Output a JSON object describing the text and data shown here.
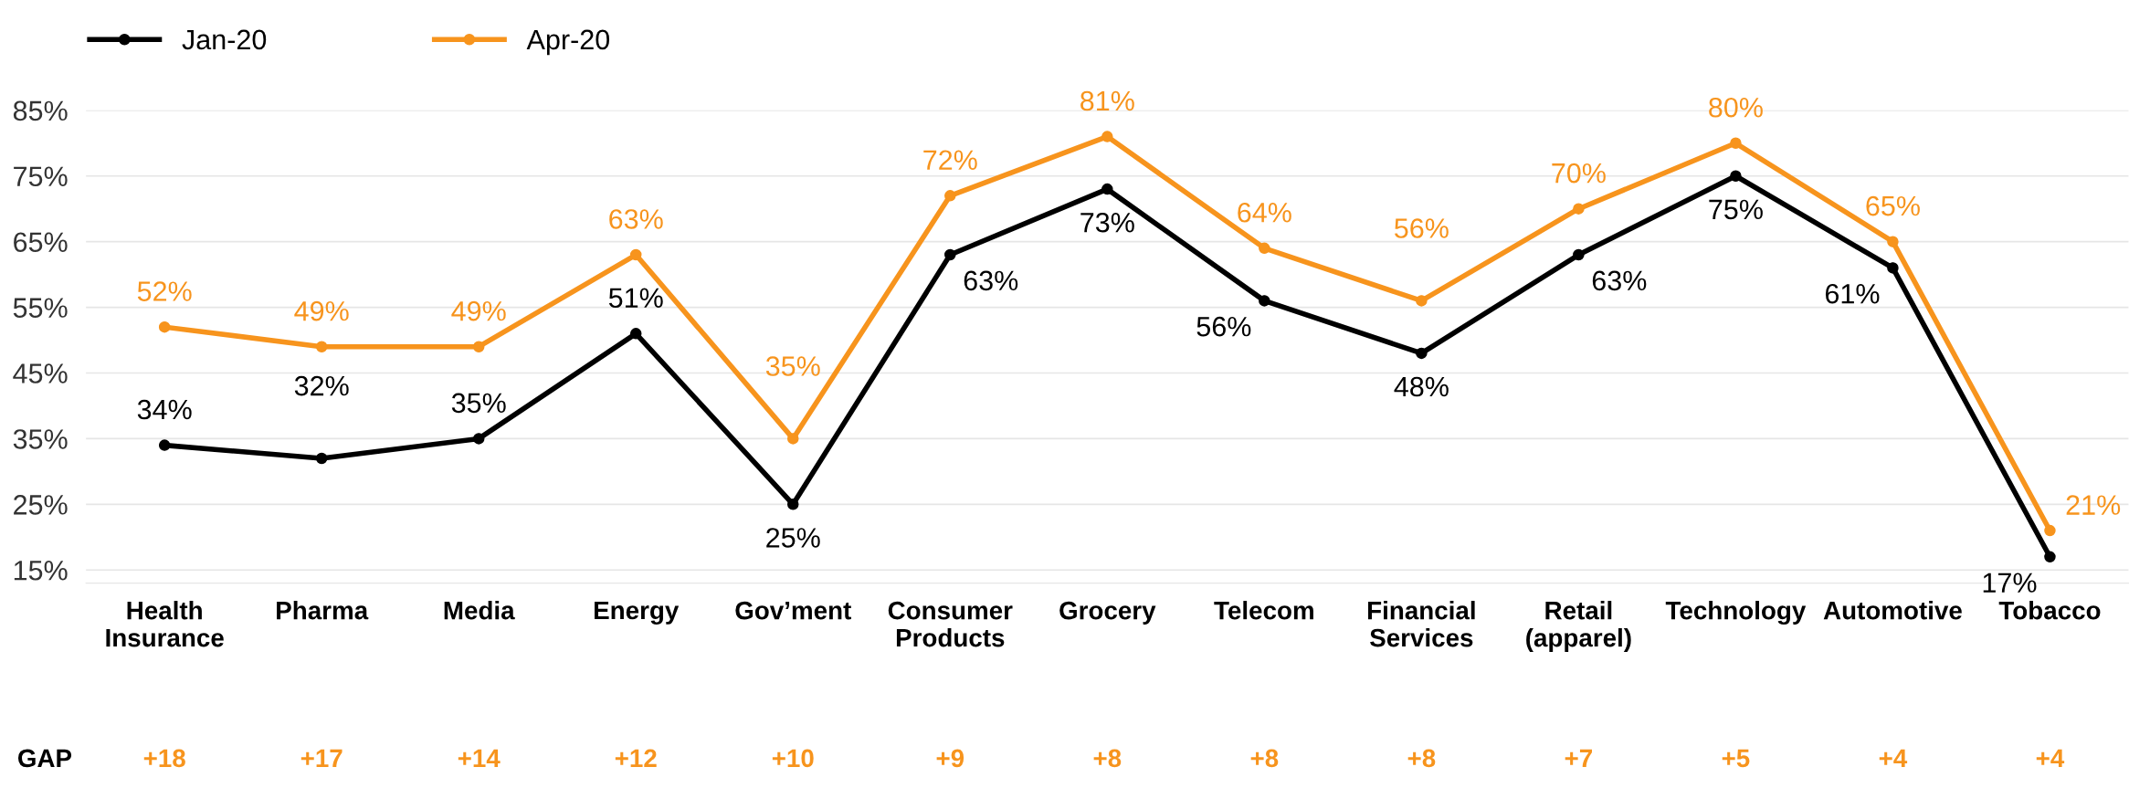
{
  "chart_data": {
    "type": "line",
    "categories": [
      "Health\nInsurance",
      "Pharma",
      "Media",
      "Energy",
      "Gov’ment",
      "Consumer\nProducts",
      "Grocery",
      "Telecom",
      "Financial\nServices",
      "Retail\n(apparel)",
      "Technology",
      "Automotive",
      "Tobacco"
    ],
    "series": [
      {
        "name": "Jan-20",
        "color": "#000000",
        "values": [
          34,
          32,
          35,
          51,
          25,
          63,
          73,
          56,
          48,
          63,
          75,
          61,
          17
        ],
        "value_labels": [
          "34%",
          "32%",
          "35%",
          "51%",
          "25%",
          "63%",
          "73%",
          "56%",
          "48%",
          "63%",
          "75%",
          "61%",
          "17%"
        ]
      },
      {
        "name": "Apr-20",
        "color": "#f7941d",
        "values": [
          52,
          49,
          49,
          63,
          35,
          72,
          81,
          64,
          56,
          70,
          80,
          65,
          21
        ],
        "value_labels": [
          "52%",
          "49%",
          "49%",
          "63%",
          "35%",
          "72%",
          "81%",
          "64%",
          "56%",
          "70%",
          "80%",
          "65%",
          "21%"
        ]
      }
    ],
    "ylim": [
      13,
      85
    ],
    "yticks": [
      {
        "value": 15,
        "label": "15%"
      },
      {
        "value": 25,
        "label": "25%"
      },
      {
        "value": 35,
        "label": "35%"
      },
      {
        "value": 45,
        "label": "45%"
      },
      {
        "value": 55,
        "label": "55%"
      },
      {
        "value": 65,
        "label": "65%"
      },
      {
        "value": 75,
        "label": "75%"
      },
      {
        "value": 85,
        "label": "85%"
      }
    ],
    "grid": "y",
    "legend": "top left",
    "marker": "circle",
    "line_style": "solid",
    "annotations": [
      "GAP",
      "+18",
      "+17",
      "+14",
      "+12",
      "+10",
      "+9",
      "+8",
      "+8",
      "+8",
      "+7",
      "+5",
      "+4",
      "+4"
    ]
  }
}
